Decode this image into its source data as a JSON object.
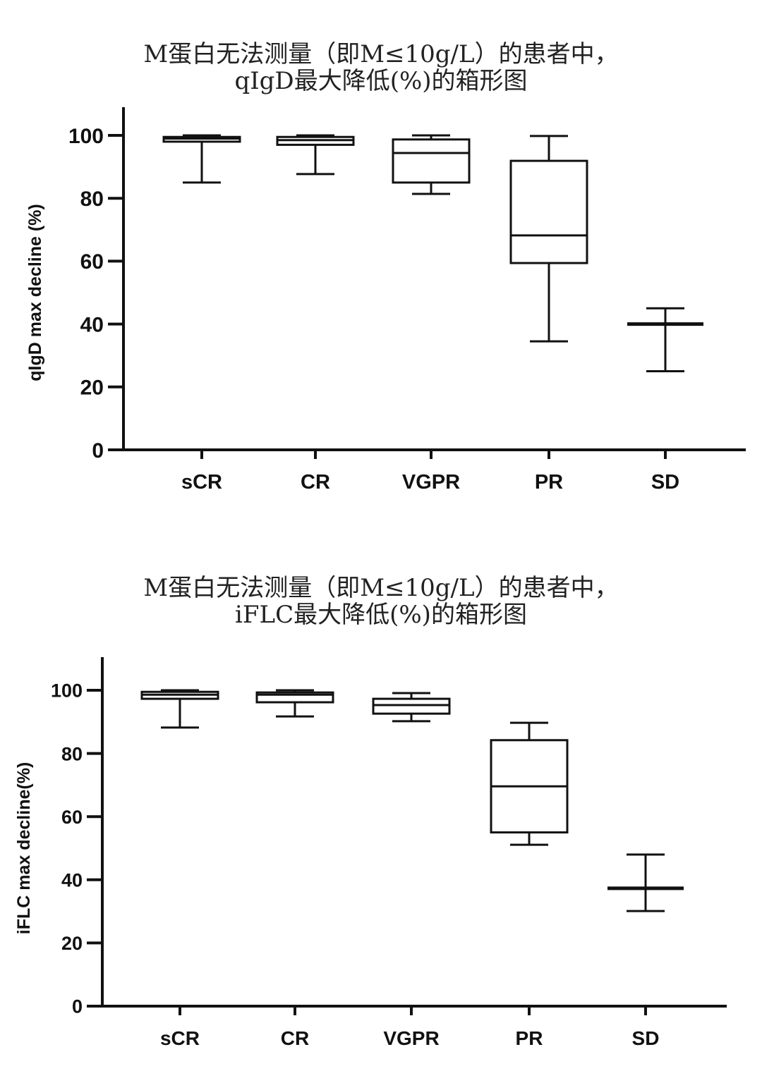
{
  "chart_data": [
    {
      "type": "box",
      "title": "M蛋白无法测量（即M≤10g/L）的患者中，qIgD最大降低(%)的箱形图",
      "title_lines": [
        "M蛋白无法测量（即M≤10g/L）的患者中，",
        "qIgD最大降低(%)的箱形图"
      ],
      "xlabel": "",
      "ylabel": "qIgD max decline (%)",
      "ylim": [
        0,
        108
      ],
      "yticks": [
        0,
        20,
        40,
        60,
        80,
        100
      ],
      "grid": false,
      "categories": [
        "sCR",
        "CR",
        "VGPR",
        "PR",
        "SD"
      ],
      "series": [
        {
          "name": "sCR",
          "min": 85.0,
          "q1": 98.0,
          "median": 99.0,
          "q3": 99.5,
          "max": 100.0
        },
        {
          "name": "CR",
          "min": 87.7,
          "q1": 97.0,
          "median": 98.5,
          "q3": 99.5,
          "max": 100.0
        },
        {
          "name": "VGPR",
          "min": 81.4,
          "q1": 85.0,
          "median": 94.4,
          "q3": 98.7,
          "max": 100.0
        },
        {
          "name": "PR",
          "min": 34.5,
          "q1": 59.4,
          "median": 68.2,
          "q3": 91.9,
          "max": 99.8
        },
        {
          "name": "SD",
          "min": 25.0,
          "q1": 40.0,
          "median": 40.0,
          "q3": 40.0,
          "max": 45.0
        }
      ]
    },
    {
      "type": "box",
      "title": "M蛋白无法测量（即M≤10g/L）的患者中，iFLC最大降低(%)的箱形图",
      "title_lines": [
        "M蛋白无法测量（即M≤10g/L）的患者中，",
        "iFLC最大降低(%)的箱形图"
      ],
      "xlabel": "",
      "ylabel": "iFLC max decline(%)",
      "ylim": [
        0,
        110
      ],
      "yticks": [
        0,
        20,
        40,
        60,
        80,
        100
      ],
      "grid": false,
      "categories": [
        "sCR",
        "CR",
        "VGPR",
        "PR",
        "SD"
      ],
      "series": [
        {
          "name": "sCR",
          "min": 88.2,
          "q1": 97.3,
          "median": 98.6,
          "q3": 99.5,
          "max": 100.0
        },
        {
          "name": "CR",
          "min": 91.7,
          "q1": 96.2,
          "median": 98.6,
          "q3": 99.3,
          "max": 100.0
        },
        {
          "name": "VGPR",
          "min": 90.2,
          "q1": 92.6,
          "median": 95.3,
          "q3": 97.3,
          "max": 99.1
        },
        {
          "name": "PR",
          "min": 51.1,
          "q1": 55.0,
          "median": 69.6,
          "q3": 84.2,
          "max": 89.7
        },
        {
          "name": "SD",
          "min": 30.1,
          "q1": 37.3,
          "median": 37.3,
          "q3": 37.3,
          "max": 48.0
        }
      ]
    }
  ],
  "charts": [
    {
      "title_line1": "M蛋白无法测量（即M≤10g/L）的患者中，",
      "title_line2": "qIgD最大降低(%)的箱形图",
      "ylabel": "qIgD max decline (%)",
      "yticks": [
        "0",
        "20",
        "40",
        "60",
        "80",
        "100"
      ],
      "categories": [
        "sCR",
        "CR",
        "VGPR",
        "PR",
        "SD"
      ]
    },
    {
      "title_line1": "M蛋白无法测量（即M≤10g/L）的患者中，",
      "title_line2": "iFLC最大降低(%)的箱形图",
      "ylabel": "iFLC max decline(%)",
      "yticks": [
        "0",
        "20",
        "40",
        "60",
        "80",
        "100"
      ],
      "categories": [
        "sCR",
        "CR",
        "VGPR",
        "PR",
        "SD"
      ]
    }
  ],
  "colors": {
    "line": "#111111",
    "background": "#ffffff",
    "text": "#222222"
  }
}
